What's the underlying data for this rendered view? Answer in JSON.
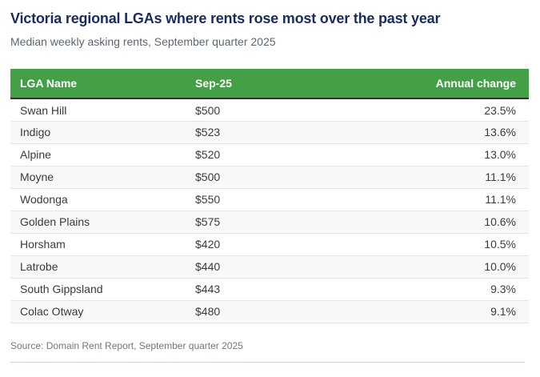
{
  "header": {
    "title": "Victoria regional LGAs where rents rose most over the past year",
    "subtitle": "Median weekly asking rents, September quarter 2025"
  },
  "table": {
    "columns": [
      "LGA Name",
      "Sep-25",
      "Annual change"
    ],
    "rows": [
      {
        "lga": "Swan Hill",
        "rent": "$500",
        "change": "23.5%"
      },
      {
        "lga": "Indigo",
        "rent": "$523",
        "change": "13.6%"
      },
      {
        "lga": "Alpine",
        "rent": "$520",
        "change": "13.0%"
      },
      {
        "lga": "Moyne",
        "rent": "$500",
        "change": "11.1%"
      },
      {
        "lga": "Wodonga",
        "rent": "$550",
        "change": "11.1%"
      },
      {
        "lga": "Golden Plains",
        "rent": "$575",
        "change": "10.6%"
      },
      {
        "lga": "Horsham",
        "rent": "$420",
        "change": "10.5%"
      },
      {
        "lga": "Latrobe",
        "rent": "$440",
        "change": "10.0%"
      },
      {
        "lga": "South Gippsland",
        "rent": "$443",
        "change": "9.3%"
      },
      {
        "lga": "Colac Otway",
        "rent": "$480",
        "change": "9.1%"
      }
    ]
  },
  "footer": {
    "source": "Source: Domain Rent Report, September quarter 2025"
  },
  "colors": {
    "header_green": "#43a047",
    "header_border_dark": "#333333",
    "title_navy": "#1b2c5a",
    "subtitle_gray": "#5c6670",
    "row_stripe": "#f8f8f8",
    "row_border": "#e4e4e4",
    "divider": "#ccd3dc"
  },
  "chart_data": {
    "type": "table",
    "title": "Victoria regional LGAs where rents rose most over the past year",
    "subtitle": "Median weekly asking rents, September quarter 2025",
    "columns": [
      "LGA Name",
      "Sep-25",
      "Annual change"
    ],
    "rows": [
      [
        "Swan Hill",
        "$500",
        "23.5%"
      ],
      [
        "Indigo",
        "$523",
        "13.6%"
      ],
      [
        "Alpine",
        "$520",
        "13.0%"
      ],
      [
        "Moyne",
        "$500",
        "11.1%"
      ],
      [
        "Wodonga",
        "$550",
        "11.1%"
      ],
      [
        "Golden Plains",
        "$575",
        "10.6%"
      ],
      [
        "Horsham",
        "$420",
        "10.5%"
      ],
      [
        "Latrobe",
        "$440",
        "10.0%"
      ],
      [
        "South Gippsland",
        "$443",
        "9.3%"
      ],
      [
        "Colac Otway",
        "$480",
        "9.1%"
      ]
    ],
    "annual_change_values_pct": [
      23.5,
      13.6,
      13.0,
      11.1,
      11.1,
      10.6,
      10.5,
      10.0,
      9.3,
      9.1
    ],
    "rent_values_dollars": [
      500,
      523,
      520,
      500,
      550,
      575,
      420,
      440,
      443,
      480
    ],
    "source": "Source: Domain Rent Report, September quarter 2025"
  }
}
